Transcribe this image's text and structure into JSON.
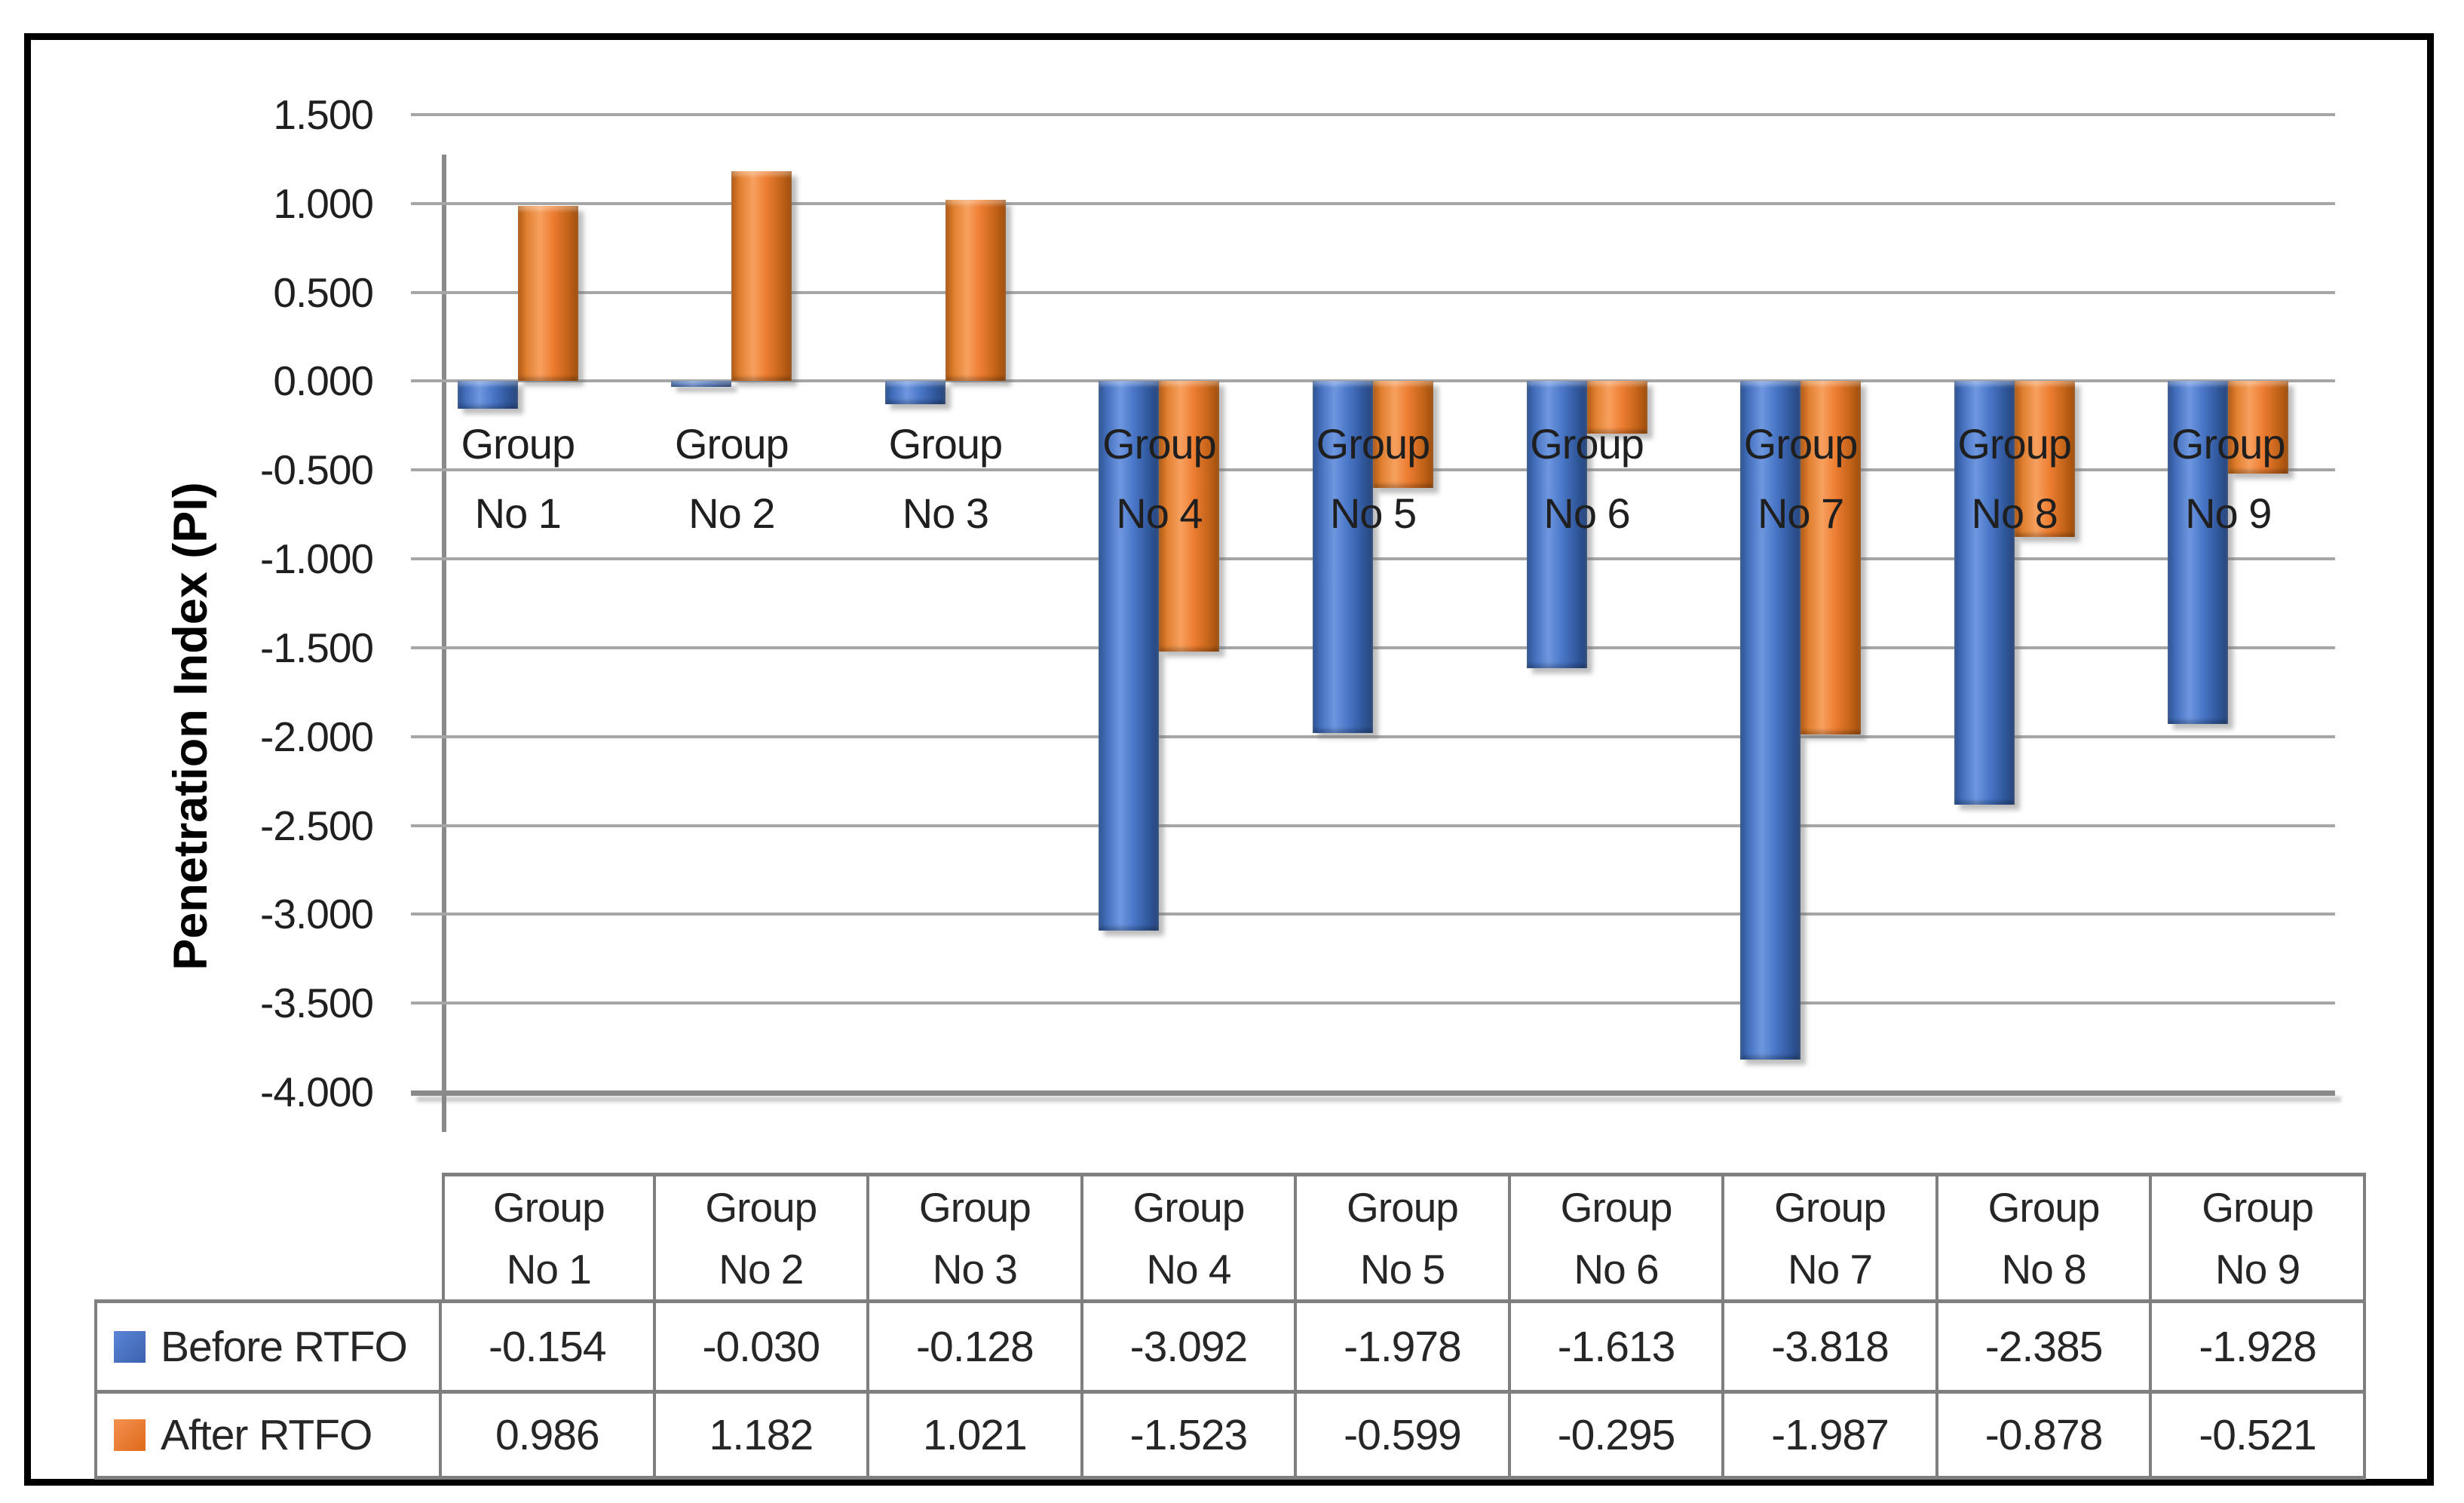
{
  "chart_data": {
    "type": "bar",
    "title": "",
    "ylabel": "Penetration Index (PI)",
    "xlabel": "",
    "categories": [
      "Group No 1",
      "Group No 2",
      "Group No 3",
      "Group No 4",
      "Group No 5",
      "Group No 6",
      "Group No 7",
      "Group No 8",
      "Group No 9"
    ],
    "series": [
      {
        "name": "Before RTFO",
        "color": "#4472C4",
        "gradient": [
          "#2C5291",
          "#4470BE",
          "#6E97DF",
          "#4A77C8",
          "#31599E",
          "#27457C"
        ],
        "values": [
          -0.154,
          -0.03,
          -0.128,
          -3.092,
          -1.978,
          -1.613,
          -3.818,
          -2.385,
          -1.928
        ]
      },
      {
        "name": "After RTFO",
        "color": "#ED7D31",
        "gradient": [
          "#B05812",
          "#E08030",
          "#F7A05F",
          "#ED7D31",
          "#C4641A",
          "#9E4D0B"
        ],
        "values": [
          0.986,
          1.182,
          1.021,
          -1.523,
          -0.599,
          -0.295,
          -1.987,
          -0.878,
          -0.521
        ]
      }
    ],
    "ylim": [
      -4.0,
      1.5
    ],
    "ytick_step": 0.5,
    "ytick_labels": [
      "1.500",
      "1.000",
      "0.500",
      "0.000",
      "-0.500",
      "-1.000",
      "-1.500",
      "-2.000",
      "-2.500",
      "-3.000",
      "-3.500",
      "-4.000"
    ],
    "grid": true,
    "legend_position": "data-table",
    "gridline_color": "#A6A6A6",
    "axis_color": "#8a8a8a"
  },
  "table": {
    "columns": [
      "Group No 1",
      "Group No 2",
      "Group No 3",
      "Group No 4",
      "Group No 5",
      "Group No 6",
      "Group No 7",
      "Group No 8",
      "Group No 9"
    ],
    "rows": [
      {
        "label": "Before RTFO",
        "swatch_color": "#4472C4",
        "swatch_gradient": [
          "#5b85d6",
          "#3a62ae"
        ],
        "values": [
          "-0.154",
          "-0.030",
          "-0.128",
          "-3.092",
          "-1.978",
          "-1.613",
          "-3.818",
          "-2.385",
          "-1.928"
        ]
      },
      {
        "label": "After RTFO",
        "swatch_color": "#ED7D31",
        "swatch_gradient": [
          "#f29150",
          "#e06a1a"
        ],
        "values": [
          "0.986",
          "1.182",
          "1.021",
          "-1.523",
          "-0.599",
          "-0.295",
          "-1.987",
          "-0.878",
          "-0.521"
        ]
      }
    ],
    "border_color": "#7F7F7F"
  }
}
